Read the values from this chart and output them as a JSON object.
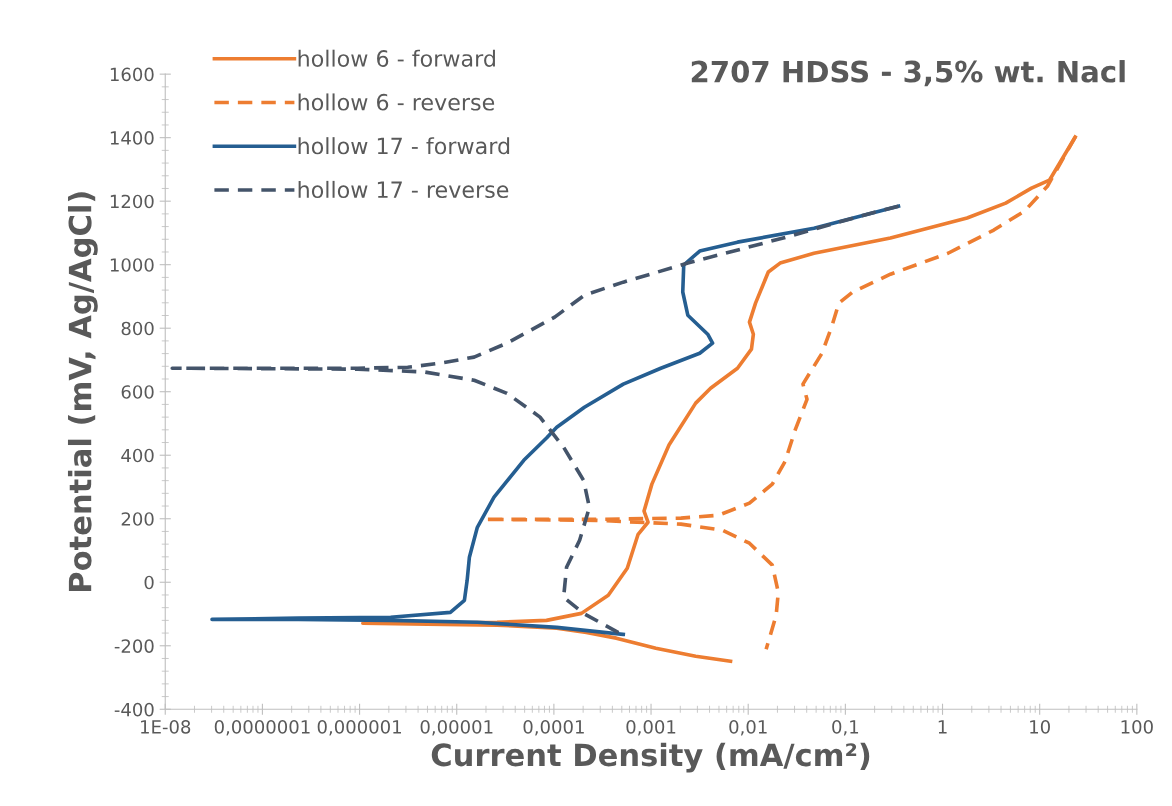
{
  "chart_data": {
    "type": "line",
    "title": "2707 HDSS - 3,5% wt. Nacl",
    "xlabel": "Current Density (mA/cm²)",
    "ylabel": "Potential (mV, Ag/AgCl)",
    "log": "x",
    "xlim": [
      1e-08,
      100
    ],
    "xticks": [
      {
        "value": 1e-08,
        "label": "1E-08"
      },
      {
        "value": 1e-07,
        "label": "0,0000001"
      },
      {
        "value": 1e-06,
        "label": "0,000001"
      },
      {
        "value": 1e-05,
        "label": "0,00001"
      },
      {
        "value": 0.0001,
        "label": "0,0001"
      },
      {
        "value": 0.001,
        "label": "0,001"
      },
      {
        "value": 0.01,
        "label": "0,01"
      },
      {
        "value": 0.1,
        "label": "0,1"
      },
      1,
      10,
      100
    ],
    "ylim": [
      -400,
      1600
    ],
    "yticks": [
      -400,
      -200,
      0,
      200,
      400,
      600,
      800,
      1000,
      1200,
      1400,
      1600
    ],
    "grid": false,
    "legend": "top left",
    "marker": "none",
    "series": [
      {
        "name": "hollow 6 - forward",
        "color": "#ed7d31",
        "line_style": "solid",
        "x": [
          0.00658,
          0.00288,
          0.00112,
          0.000439,
          0.000216,
          0.000107,
          2.6e-05,
          5e-06,
          1.08e-06,
          5e-06,
          2.6e-05,
          8.4e-05,
          0.000192,
          0.000363,
          0.000569,
          0.000736,
          0.000931,
          0.000847,
          0.00102,
          0.00153,
          0.00288,
          0.0041,
          0.00776,
          0.0108,
          0.0113,
          0.0103,
          0.0119,
          0.0161,
          0.0213,
          0.0475,
          0.291,
          1.79,
          4.47,
          8.24,
          12.6,
          23.2
        ],
        "values": [
          -249,
          -233,
          -208,
          -176,
          -158,
          -145,
          -135,
          -132,
          -129,
          -129,
          -126,
          -120,
          -98,
          -41,
          44,
          151,
          189,
          224,
          309,
          432,
          564,
          611,
          674,
          734,
          781,
          819,
          879,
          977,
          1005,
          1036,
          1084,
          1147,
          1194,
          1241,
          1266,
          1402
        ]
      },
      {
        "name": "hollow 6 - reverse",
        "color": "#ed7d31",
        "line_style": "dashed",
        "x": [
          23.2,
          12.0,
          7.0,
          3.37,
          1.14,
          0.291,
          0.119,
          0.0857,
          0.0726,
          0.0574,
          0.0366,
          0.0403,
          0.0304,
          0.024,
          0.0177,
          0.0103,
          0.00495,
          0.00203,
          0.000274,
          1.91e-05,
          0.000274,
          0.00203,
          0.00544,
          0.0103,
          0.0177,
          0.0204,
          0.0194,
          0.0153
        ],
        "values": [
          1402,
          1247,
          1169,
          1109,
          1036,
          970,
          914,
          879,
          806,
          721,
          624,
          576,
          479,
          381,
          309,
          249,
          211,
          202,
          198,
          198,
          195,
          183,
          164,
          123,
          54,
          -32,
          -104,
          -211
        ]
      },
      {
        "name": "hollow 17 - forward",
        "color": "#255e91",
        "line_style": "solid",
        "x": [
          0.000518,
          0.000107,
          1.63e-05,
          2.09e-06,
          2.35e-07,
          3.03e-08,
          2.35e-07,
          2.09e-06,
          8.6e-06,
          1.2e-05,
          1.28e-05,
          1.35e-05,
          1.63e-05,
          2.42e-05,
          4.9e-05,
          8.4e-05,
          0.000107,
          0.000206,
          0.000518,
          0.00126,
          0.00317,
          0.0043,
          0.00383,
          0.00239,
          0.00212,
          0.00217,
          0.00317,
          0.00776,
          0.0475,
          0.352
        ],
        "values": [
          -164,
          -142,
          -126,
          -120,
          -117,
          -117,
          -113,
          -110,
          -95,
          -57,
          6,
          79,
          173,
          268,
          384,
          454,
          488,
          551,
          624,
          674,
          721,
          753,
          781,
          841,
          914,
          999,
          1043,
          1071,
          1115,
          1184
        ]
      },
      {
        "name": "hollow 17 - reverse",
        "color": "#44546a",
        "line_style": "dashed",
        "x": [
          0.352,
          0.154,
          0.0229,
          0.00239,
          0.000518,
          0.000206,
          0.000102,
          3.29e-05,
          1.51e-05,
          6.8e-06,
          3.13e-06,
          9.6e-07,
          1.18e-08,
          9.6e-07,
          4.67e-06,
          1.51e-05,
          3.29e-05,
          7.2e-05,
          0.000126,
          0.000202,
          0.000232,
          0.000184,
          0.000135,
          0.000126,
          0.000202,
          0.000518
        ],
        "values": [
          1184,
          1156,
          1084,
          1005,
          945,
          904,
          835,
          753,
          709,
          690,
          677,
          674,
          674,
          671,
          662,
          636,
          595,
          520,
          425,
          321,
          236,
          132,
          47,
          -47,
          -98,
          -167
        ]
      }
    ]
  }
}
